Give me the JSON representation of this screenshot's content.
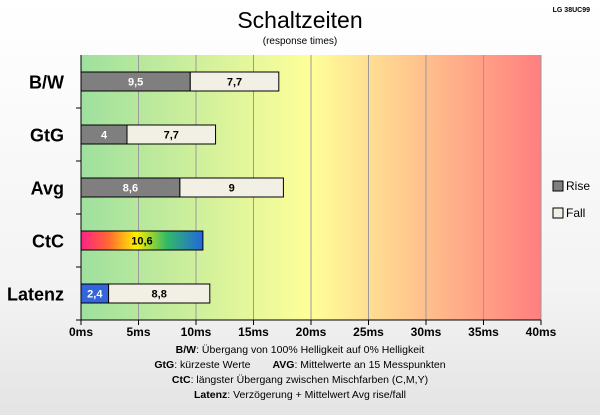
{
  "model": "LG 38UC99",
  "chart_data": {
    "type": "bar",
    "orientation": "horizontal",
    "stacked": true,
    "title": "Schaltzeiten",
    "subtitle": "(response times)",
    "categories": [
      "B/W",
      "GtG",
      "Avg",
      "CtC",
      "Latenz"
    ],
    "series": [
      {
        "name": "Rise",
        "values": [
          9.5,
          4,
          8.6,
          null,
          2.4
        ],
        "labels": [
          "9,5",
          "4",
          "8,6",
          "",
          "2,4"
        ]
      },
      {
        "name": "Fall",
        "values": [
          7.7,
          7.7,
          9,
          null,
          8.8
        ],
        "labels": [
          "7,7",
          "7,7",
          "9",
          "",
          "8,8"
        ]
      },
      {
        "name": "",
        "values": [
          null,
          null,
          null,
          10.6,
          null
        ],
        "labels": [
          "",
          "",
          "",
          "10,6",
          ""
        ]
      }
    ],
    "xlim": [
      0,
      40
    ],
    "xticks": [
      "0ms",
      "5ms",
      "10ms",
      "15ms",
      "20ms",
      "25ms",
      "30ms",
      "35ms",
      "40ms"
    ],
    "grid": true,
    "legend_position": "right",
    "colors": {
      "rise": "#7f7f7f",
      "fall": "#f2f0e4",
      "latency_rise": "#3366dd",
      "background_start": "#9ee09e",
      "background_mid": "#ffff99",
      "background_end": "#ff7f7f"
    }
  },
  "footnotes": [
    {
      "key": "B/W",
      "text": ":  Übergang von 100% Helligkeit auf 0% Helligkeit"
    },
    {
      "key": "GtG",
      "text": ": kürzeste  Werte"
    },
    {
      "key": "AVG",
      "text": ": Mittelwerte  an 15 Messpunkten"
    },
    {
      "key": "CtC",
      "text": ": längster Übergang  zwischen Mischfarben (C,M,Y)"
    },
    {
      "key": "Latenz",
      "text": ": Verzögerung  + Mittelwert  Avg rise/fall"
    }
  ]
}
